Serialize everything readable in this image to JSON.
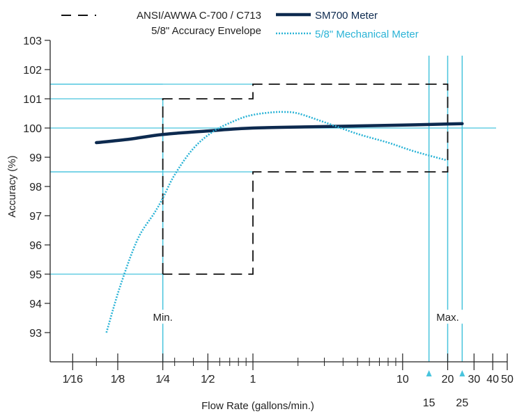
{
  "chart_data": {
    "type": "line",
    "title": "",
    "xlabel": "Flow Rate (gallons/min.)",
    "ylabel": "Accuracy (%)",
    "x_scale": "log",
    "xlim": [
      0.0442,
      50
    ],
    "ylim": [
      92.0,
      103
    ],
    "y_ticks": [
      93,
      94,
      95,
      96,
      97,
      98,
      99,
      100,
      101,
      102,
      103
    ],
    "x_tick_labels": [
      {
        "value": 0.0625,
        "label": "1⁄16"
      },
      {
        "value": 0.125,
        "label": "1⁄8"
      },
      {
        "value": 0.25,
        "label": "1⁄4"
      },
      {
        "value": 0.5,
        "label": "1⁄2"
      },
      {
        "value": 1,
        "label": "1"
      },
      {
        "value": 10,
        "label": "10"
      },
      {
        "value": 20,
        "label": "20"
      },
      {
        "value": 30,
        "label": "30"
      },
      {
        "value": 40,
        "label": "40"
      },
      {
        "value": 50,
        "label": "50"
      }
    ],
    "x_minor_ticks": [
      0.09,
      0.3,
      0.4,
      0.6,
      0.7,
      0.8,
      0.9,
      2,
      3,
      4,
      5,
      6,
      7,
      8,
      9
    ],
    "series": [
      {
        "name": "SM700 Meter",
        "color": "#0d2a4f",
        "style": "solid-thick",
        "x": [
          0.09,
          0.15,
          0.25,
          0.5,
          1,
          3,
          10,
          25
        ],
        "y": [
          99.5,
          99.62,
          99.78,
          99.9,
          100.0,
          100.05,
          100.1,
          100.15
        ]
      },
      {
        "name": "5/8\" Mechanical Meter",
        "color": "#2ab3d6",
        "style": "dotted",
        "x": [
          0.105,
          0.13,
          0.17,
          0.22,
          0.25,
          0.3,
          0.4,
          0.55,
          0.8,
          1,
          1.3,
          1.6,
          2,
          3,
          5,
          8,
          12,
          19.6
        ],
        "y": [
          93.0,
          94.6,
          96.2,
          97.1,
          97.6,
          98.4,
          99.3,
          99.9,
          100.3,
          100.45,
          100.53,
          100.55,
          100.5,
          100.2,
          99.8,
          99.5,
          99.2,
          98.9
        ]
      }
    ],
    "envelope": {
      "name": "ANSI/AWWA C-700 / C713",
      "name_line2": "5/8\" Accuracy Envelope",
      "style": "dashed",
      "color": "#111111",
      "x": [
        0.25,
        0.25,
        1,
        1,
        20,
        20,
        1,
        1,
        0.25
      ],
      "y": [
        95,
        101,
        101,
        101.5,
        101.5,
        98.5,
        98.5,
        95,
        95
      ]
    },
    "reference_lines": {
      "color": "#48c4dd",
      "horizontal_short": [
        101.5,
        101,
        98.5,
        95
      ],
      "horizontal_full": [
        100
      ],
      "vertical": [
        0.25,
        15,
        20,
        25
      ]
    },
    "annotations": [
      {
        "text": "Min.",
        "x": 0.25,
        "y": 93.4
      },
      {
        "text": "Max.",
        "x": 20,
        "y": 93.4
      }
    ],
    "below_axis_labels": [
      {
        "value": 15,
        "label": "15"
      },
      {
        "value": 25,
        "label": "25"
      }
    ],
    "grid": false,
    "legend_position": "top"
  }
}
